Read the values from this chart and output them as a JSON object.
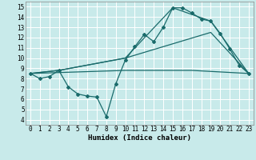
{
  "xlabel": "Humidex (Indice chaleur)",
  "background_color": "#c8eaea",
  "grid_color": "#ffffff",
  "line_color": "#1a6b6b",
  "xlim": [
    -0.5,
    23.5
  ],
  "ylim": [
    3.5,
    15.5
  ],
  "xticks": [
    0,
    1,
    2,
    3,
    4,
    5,
    6,
    7,
    8,
    9,
    10,
    11,
    12,
    13,
    14,
    15,
    16,
    17,
    18,
    19,
    20,
    21,
    22,
    23
  ],
  "yticks": [
    4,
    5,
    6,
    7,
    8,
    9,
    10,
    11,
    12,
    13,
    14,
    15
  ],
  "line1_x": [
    0,
    1,
    2,
    3,
    4,
    5,
    6,
    7,
    8,
    9,
    10,
    11,
    12,
    13,
    14,
    15,
    16,
    17,
    18,
    19,
    20,
    21,
    22,
    23
  ],
  "line1_y": [
    8.5,
    8.0,
    8.2,
    8.8,
    7.2,
    6.5,
    6.3,
    6.2,
    4.3,
    7.5,
    9.8,
    11.1,
    12.3,
    11.6,
    13.0,
    14.9,
    14.9,
    14.4,
    13.8,
    13.6,
    12.4,
    10.9,
    9.3,
    8.5
  ],
  "line2_x": [
    0,
    3,
    10,
    15,
    19,
    23
  ],
  "line2_y": [
    8.5,
    8.8,
    10.0,
    14.9,
    13.6,
    8.5
  ],
  "line3_x": [
    0,
    3,
    10,
    19,
    23
  ],
  "line3_y": [
    8.5,
    8.8,
    10.0,
    12.5,
    8.5
  ],
  "line4_x": [
    0,
    10,
    17,
    23
  ],
  "line4_y": [
    8.5,
    8.8,
    8.8,
    8.5
  ]
}
